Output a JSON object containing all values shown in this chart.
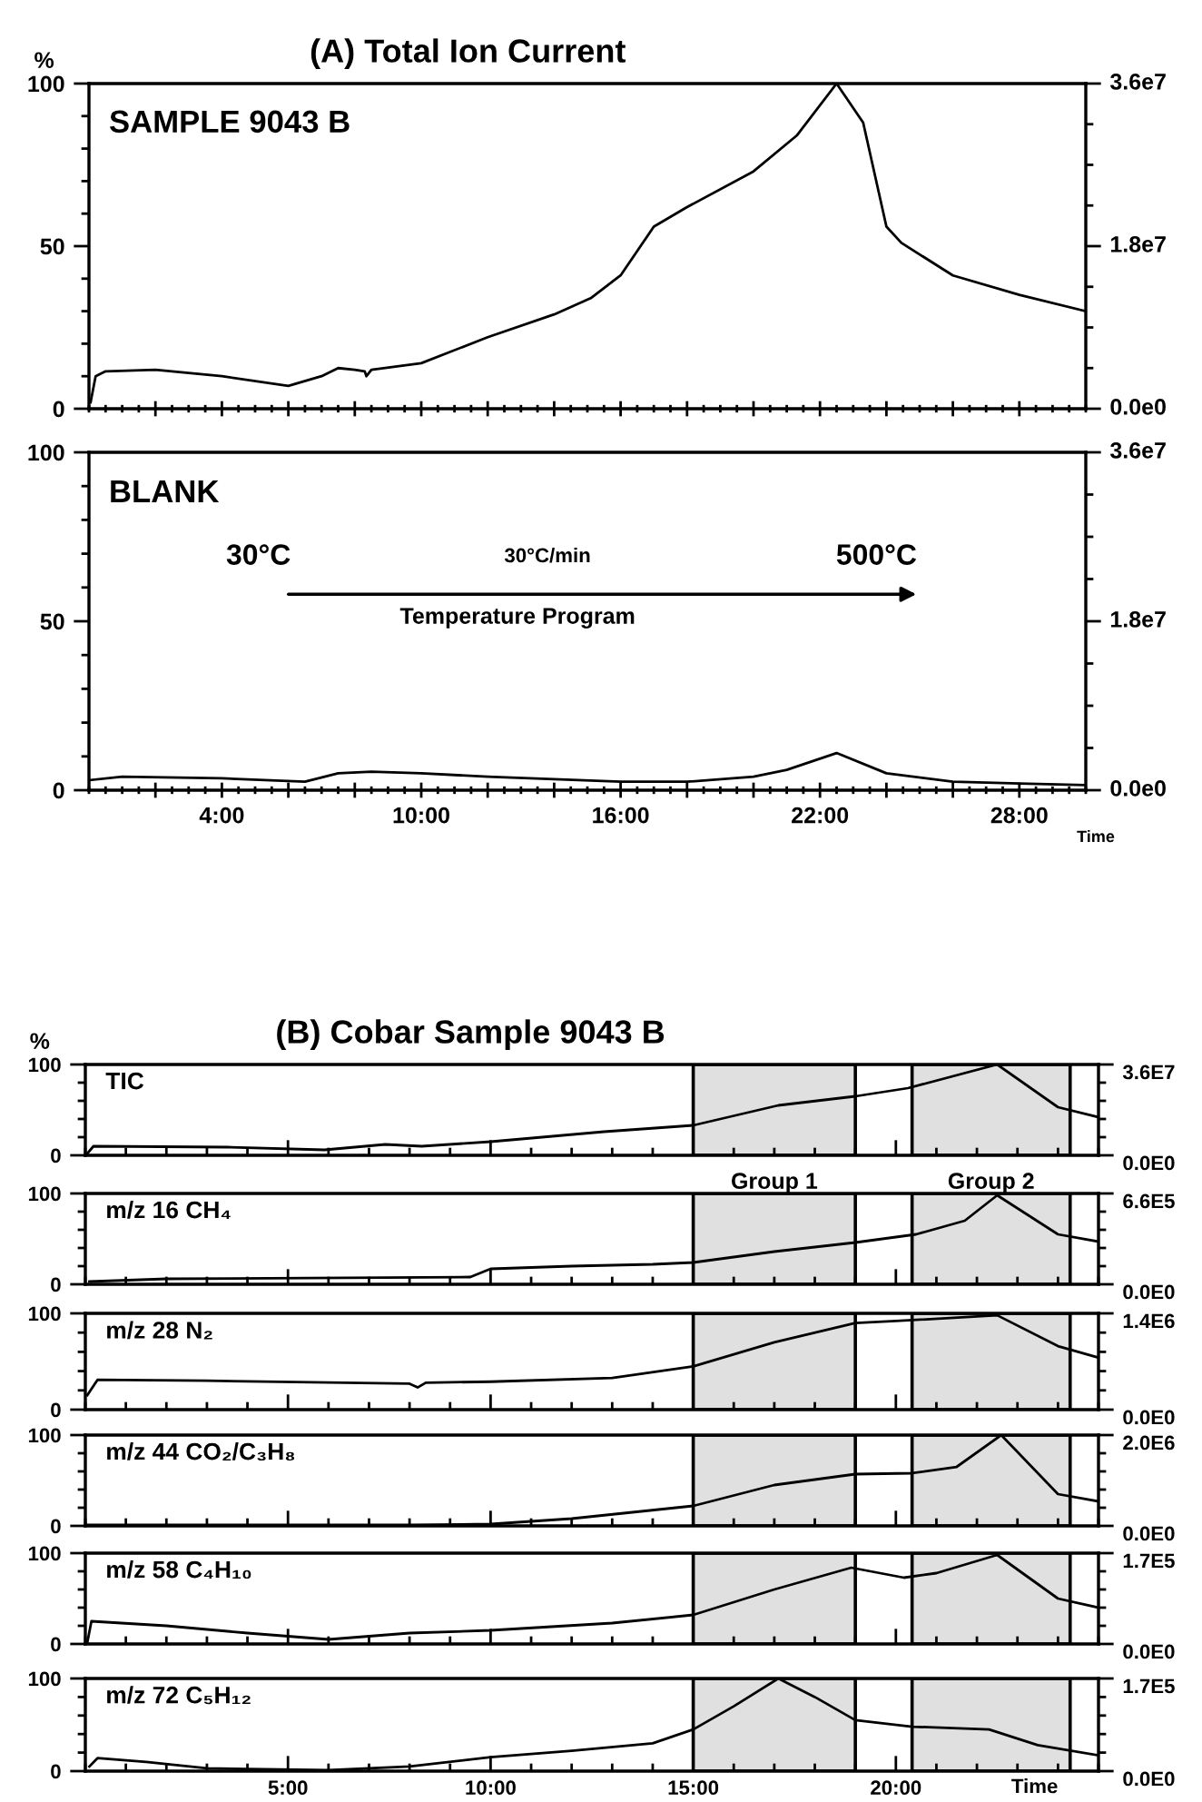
{
  "chart_data": [
    {
      "type": "line",
      "title": "(A) Total Ion Current",
      "ylabel": "%",
      "tick_labels": "y",
      "grid": false,
      "annotations": [
        "SAMPLE 9043 B"
      ],
      "x": [
        0.05,
        0.2,
        0.5,
        2,
        4,
        6,
        7,
        7.5,
        8,
        8.3,
        8.35,
        8.5,
        10,
        12,
        14,
        15.1,
        16,
        17,
        18,
        20,
        21.3,
        22.5,
        23.3,
        24,
        24.45,
        26,
        28,
        30
      ],
      "series": [
        {
          "color": "#000000",
          "values": [
            2,
            10,
            11.5,
            12,
            10,
            7,
            10,
            12.5,
            12,
            11.5,
            10,
            12,
            14,
            22,
            29,
            34,
            41,
            56,
            62,
            73,
            84,
            100,
            88,
            56,
            51,
            41,
            35,
            30
          ]
        }
      ],
      "xlim": [
        0,
        30
      ],
      "xticks": [
        {
          "value": 2,
          "label": null
        },
        {
          "value": 4,
          "label": null
        },
        {
          "value": 6,
          "label": null
        },
        {
          "value": 8,
          "label": null
        },
        {
          "value": 10,
          "label": null
        },
        {
          "value": 12,
          "label": null
        },
        {
          "value": 14,
          "label": null
        },
        {
          "value": 16,
          "label": null
        },
        {
          "value": 18,
          "label": null
        },
        {
          "value": 20,
          "label": null
        },
        {
          "value": 22,
          "label": null
        },
        {
          "value": 24,
          "label": null
        },
        {
          "value": 26,
          "label": null
        },
        {
          "value": 28,
          "label": null
        }
      ],
      "ylim": [
        0,
        100
      ],
      "yticks": [
        0,
        50,
        100
      ],
      "y2lim": [
        0,
        36000000
      ],
      "y2ticks": [
        {
          "value": 0,
          "label": "0.0e0"
        },
        {
          "value": 18000000,
          "label": "1.8e7"
        },
        {
          "value": 36000000,
          "label": "3.6e7"
        }
      ]
    },
    {
      "type": "line",
      "xlabel": "Time",
      "grid": false,
      "annotations": [
        "BLANK",
        "30°C",
        "30°C/min",
        "500°C",
        "Temperature Program"
      ],
      "x": [
        0.05,
        1,
        4,
        6.5,
        7.5,
        8.5,
        10,
        12,
        16,
        18,
        20,
        21,
        22.5,
        24,
        26,
        28,
        30
      ],
      "series": [
        {
          "color": "#000000",
          "values": [
            3,
            4,
            3.5,
            2.5,
            5,
            5.5,
            5,
            4,
            2.5,
            2.5,
            4,
            6,
            11,
            5,
            2.5,
            2,
            1.5
          ]
        }
      ],
      "xlim": [
        0,
        30
      ],
      "xticks": [
        {
          "value": 2,
          "label": null
        },
        {
          "value": 4,
          "label": "4:00"
        },
        {
          "value": 6,
          "label": null
        },
        {
          "value": 8,
          "label": null
        },
        {
          "value": 10,
          "label": "10:00"
        },
        {
          "value": 12,
          "label": null
        },
        {
          "value": 14,
          "label": null
        },
        {
          "value": 16,
          "label": "16:00"
        },
        {
          "value": 18,
          "label": null
        },
        {
          "value": 20,
          "label": null
        },
        {
          "value": 22,
          "label": "22:00"
        },
        {
          "value": 24,
          "label": null
        },
        {
          "value": 26,
          "label": null
        },
        {
          "value": 28,
          "label": "28:00"
        }
      ],
      "ylim": [
        0,
        100
      ],
      "yticks": [
        0,
        50,
        100
      ],
      "y2lim": [
        0,
        36000000
      ],
      "y2ticks": [
        {
          "value": 0,
          "label": "0.0e0"
        },
        {
          "value": 18000000,
          "label": "1.8e7"
        },
        {
          "value": 36000000,
          "label": "3.6e7"
        }
      ]
    },
    {
      "type": "line",
      "title": "(B) Cobar Sample 9043 B",
      "ylabel": "%",
      "tick_labels": "y",
      "grid": false,
      "annotations": [
        "TIC"
      ],
      "x": [
        0.05,
        0.2,
        3.5,
        5.9,
        7.4,
        8.3,
        10,
        12.8,
        15,
        17.1,
        19,
        20.3,
        22.5,
        24,
        25
      ],
      "series": [
        {
          "color": "#000000",
          "values": [
            2,
            10,
            9,
            6,
            12,
            10,
            15,
            26,
            33,
            55,
            65,
            74,
            100,
            53,
            42
          ]
        }
      ],
      "bands": [
        {
          "axis": "x",
          "from": 15,
          "to": 19,
          "color": "#e0e0e0"
        },
        {
          "axis": "x",
          "from": 20.4,
          "to": 24.3,
          "color": "#e0e0e0"
        }
      ],
      "xlim": [
        0,
        25
      ],
      "xticks": [
        {
          "value": 5,
          "label": null
        },
        {
          "value": 10,
          "label": null
        },
        {
          "value": 15,
          "label": null
        },
        {
          "value": 20,
          "label": null
        }
      ],
      "ylim": [
        0,
        100
      ],
      "yticks": [
        0,
        100
      ],
      "y2lim": [
        0,
        36000000
      ],
      "y2ticks": [
        {
          "value": 0,
          "label": "0.0E0"
        },
        {
          "value": 36000000,
          "label": "3.6E7"
        }
      ]
    },
    {
      "type": "line",
      "tick_labels": "y",
      "grid": false,
      "annotations": [
        "m/z 16 CH₄"
      ],
      "x": [
        0.1,
        2,
        9.5,
        10,
        12,
        14,
        15,
        17,
        19,
        20.5,
        21.7,
        22.5,
        24,
        25
      ],
      "series": [
        {
          "color": "#000000",
          "values": [
            3,
            6,
            8,
            17,
            20,
            22,
            24,
            36,
            46,
            55,
            70,
            98,
            55,
            47
          ]
        }
      ],
      "bands": [
        {
          "axis": "x",
          "from": 15,
          "to": 19,
          "color": "#e0e0e0",
          "label": "Group 1"
        },
        {
          "axis": "x",
          "from": 20.4,
          "to": 24.3,
          "color": "#e0e0e0",
          "label": "Group 2"
        }
      ],
      "xlim": [
        0,
        25
      ],
      "xticks": [
        {
          "value": 5,
          "label": null
        },
        {
          "value": 10,
          "label": null
        },
        {
          "value": 15,
          "label": null
        },
        {
          "value": 20,
          "label": null
        }
      ],
      "ylim": [
        0,
        100
      ],
      "yticks": [
        0,
        100
      ],
      "y2lim": [
        0,
        660000
      ],
      "y2ticks": [
        {
          "value": 0,
          "label": "0.0E0"
        },
        {
          "value": 660000,
          "label": "6.6E5"
        }
      ]
    },
    {
      "type": "line",
      "tick_labels": "y",
      "grid": false,
      "annotations": [
        "m/z 28 N₂"
      ],
      "x": [
        0.05,
        0.3,
        3,
        8,
        8.2,
        8.4,
        10,
        13,
        15,
        17,
        19,
        20,
        22.5,
        24,
        25
      ],
      "series": [
        {
          "color": "#000000",
          "values": [
            15,
            31,
            30,
            27,
            23,
            28,
            29,
            33,
            45,
            70,
            90,
            92,
            98,
            66,
            54
          ]
        }
      ],
      "bands": [
        {
          "axis": "x",
          "from": 15,
          "to": 19,
          "color": "#e0e0e0"
        },
        {
          "axis": "x",
          "from": 20.4,
          "to": 24.3,
          "color": "#e0e0e0"
        }
      ],
      "xlim": [
        0,
        25
      ],
      "xticks": [
        {
          "value": 5,
          "label": null
        },
        {
          "value": 10,
          "label": null
        },
        {
          "value": 15,
          "label": null
        },
        {
          "value": 20,
          "label": null
        }
      ],
      "ylim": [
        0,
        100
      ],
      "yticks": [
        0,
        100
      ],
      "y2lim": [
        0,
        1400000
      ],
      "y2ticks": [
        {
          "value": 0,
          "label": "0.0E0"
        },
        {
          "value": 1400000,
          "label": "1.4E6"
        }
      ]
    },
    {
      "type": "line",
      "tick_labels": "y",
      "grid": false,
      "annotations": [
        "m/z 44 CO₂/C₃H₈"
      ],
      "x": [
        0.05,
        8,
        10,
        12,
        15,
        17,
        19,
        20.4,
        21.5,
        22.6,
        24,
        25
      ],
      "series": [
        {
          "color": "#000000",
          "values": [
            1,
            1,
            2,
            8,
            22,
            45,
            57,
            58,
            65,
            100,
            35,
            27
          ]
        }
      ],
      "bands": [
        {
          "axis": "x",
          "from": 15,
          "to": 19,
          "color": "#e0e0e0"
        },
        {
          "axis": "x",
          "from": 20.4,
          "to": 24.3,
          "color": "#e0e0e0"
        }
      ],
      "xlim": [
        0,
        25
      ],
      "xticks": [
        {
          "value": 5,
          "label": null
        },
        {
          "value": 10,
          "label": null
        },
        {
          "value": 15,
          "label": null
        },
        {
          "value": 20,
          "label": null
        }
      ],
      "ylim": [
        0,
        100
      ],
      "yticks": [
        0,
        100
      ],
      "y2lim": [
        0,
        2000000
      ],
      "y2ticks": [
        {
          "value": 0,
          "label": "0.0E0"
        },
        {
          "value": 2000000,
          "label": "2.0E6"
        }
      ]
    },
    {
      "type": "line",
      "tick_labels": "y",
      "grid": false,
      "annotations": [
        "m/z 58 C₄H₁₀"
      ],
      "x": [
        0.05,
        0.15,
        2,
        4,
        6,
        8,
        10,
        13,
        15,
        17,
        18.9,
        20.2,
        21,
        22.5,
        24,
        25
      ],
      "series": [
        {
          "color": "#000000",
          "values": [
            2,
            25,
            20,
            12,
            5,
            12,
            15,
            23,
            32,
            60,
            84,
            73,
            78,
            98,
            50,
            40
          ]
        }
      ],
      "bands": [
        {
          "axis": "x",
          "from": 15,
          "to": 19,
          "color": "#e0e0e0"
        },
        {
          "axis": "x",
          "from": 20.4,
          "to": 24.3,
          "color": "#e0e0e0"
        }
      ],
      "xlim": [
        0,
        25
      ],
      "xticks": [
        {
          "value": 5,
          "label": null
        },
        {
          "value": 10,
          "label": null
        },
        {
          "value": 15,
          "label": null
        },
        {
          "value": 20,
          "label": null
        }
      ],
      "ylim": [
        0,
        100
      ],
      "yticks": [
        0,
        100
      ],
      "y2lim": [
        0,
        170000
      ],
      "y2ticks": [
        {
          "value": 0,
          "label": "0.0E0"
        },
        {
          "value": 170000,
          "label": "1.7E5"
        }
      ]
    },
    {
      "type": "line",
      "xlabel": "Time",
      "grid": false,
      "annotations": [
        "m/z 72 C₅H₁₂"
      ],
      "x": [
        0.1,
        0.3,
        1.5,
        3,
        6,
        8,
        10,
        12,
        14,
        15,
        16,
        17.1,
        18,
        19,
        20.4,
        22.3,
        23.5,
        25
      ],
      "series": [
        {
          "color": "#000000",
          "values": [
            5,
            14,
            10,
            3,
            1,
            5,
            15,
            22,
            30,
            45,
            70,
            100,
            80,
            55,
            48,
            45,
            28,
            17
          ]
        }
      ],
      "bands": [
        {
          "axis": "x",
          "from": 15,
          "to": 19,
          "color": "#e0e0e0"
        },
        {
          "axis": "x",
          "from": 20.4,
          "to": 24.3,
          "color": "#e0e0e0"
        }
      ],
      "xlim": [
        0,
        25
      ],
      "xticks": [
        {
          "value": 5,
          "label": "5:00"
        },
        {
          "value": 10,
          "label": "10:00"
        },
        {
          "value": 15,
          "label": "15:00"
        },
        {
          "value": 20,
          "label": "20:00"
        }
      ],
      "ylim": [
        0,
        100
      ],
      "yticks": [
        0,
        100
      ],
      "y2lim": [
        0,
        170000
      ],
      "y2ticks": [
        {
          "value": 0,
          "label": "0.0E0"
        },
        {
          "value": 170000,
          "label": "1.7E5"
        }
      ]
    }
  ]
}
